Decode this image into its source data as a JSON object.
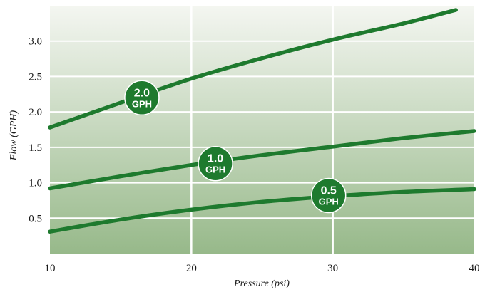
{
  "chart_data": {
    "type": "line",
    "xlabel": "Pressure (psi)",
    "ylabel": "Flow (GPH)",
    "xlim": [
      10,
      40
    ],
    "ylim": [
      0,
      3.5
    ],
    "xticks": [
      "10",
      "20",
      "30",
      "40"
    ],
    "yticks": [
      "0.5",
      "1.0",
      "1.5",
      "2.0",
      "2.5",
      "3.0"
    ],
    "grid": true,
    "colors": {
      "line": "#1e7a2e",
      "badge": "#1e7a2e",
      "background_top": "#f4f6f1",
      "background_bottom": "#97b98a",
      "grid": "#ffffff"
    },
    "series": [
      {
        "label_top": "2.0",
        "label_bottom": "GPH",
        "badge_at": [
          16.5,
          2.2
        ],
        "points": [
          [
            10,
            1.78
          ],
          [
            15,
            2.13
          ],
          [
            20,
            2.47
          ],
          [
            25,
            2.76
          ],
          [
            30,
            3.02
          ],
          [
            35,
            3.25
          ],
          [
            38.7,
            3.44
          ]
        ]
      },
      {
        "label_top": "1.0",
        "label_bottom": "GPH",
        "badge_at": [
          21.7,
          1.27
        ],
        "points": [
          [
            10,
            0.92
          ],
          [
            15,
            1.09
          ],
          [
            20,
            1.25
          ],
          [
            25,
            1.39
          ],
          [
            30,
            1.51
          ],
          [
            35,
            1.63
          ],
          [
            40,
            1.73
          ]
        ]
      },
      {
        "label_top": "0.5",
        "label_bottom": "GPH",
        "badge_at": [
          29.7,
          0.82
        ],
        "points": [
          [
            10,
            0.31
          ],
          [
            15,
            0.48
          ],
          [
            20,
            0.62
          ],
          [
            25,
            0.73
          ],
          [
            30,
            0.81
          ],
          [
            35,
            0.87
          ],
          [
            40,
            0.91
          ]
        ]
      }
    ]
  }
}
